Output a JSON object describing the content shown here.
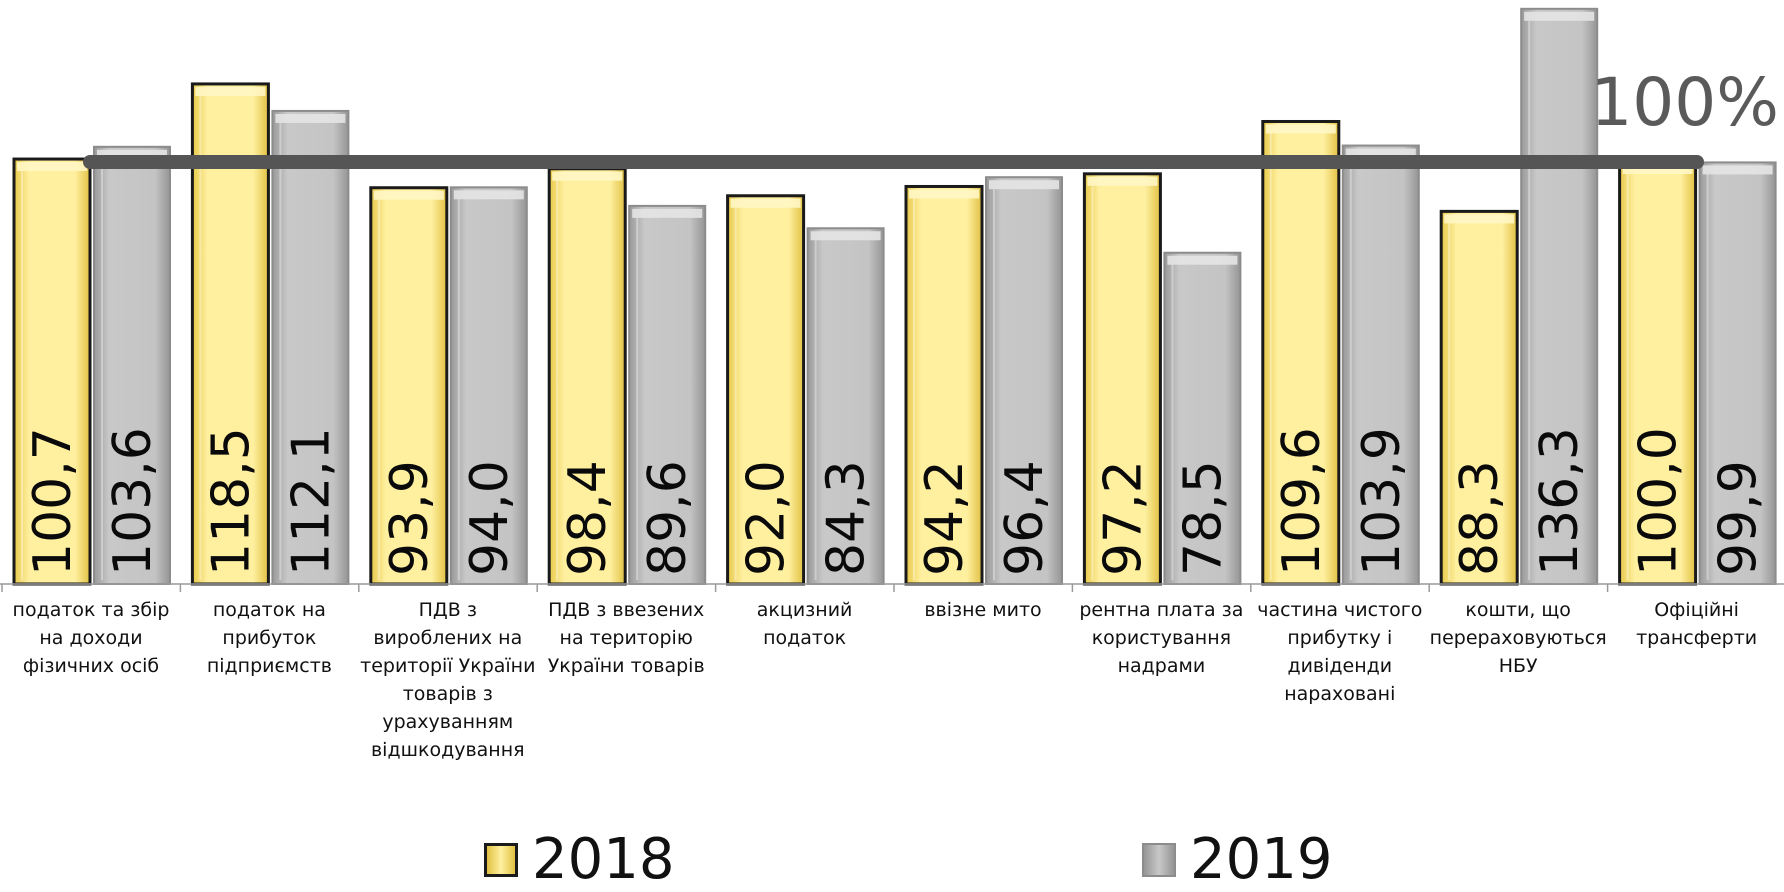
{
  "chart_data": {
    "type": "bar",
    "categories": [
      "податок та збір на доходи фізичних осіб",
      "податок на прибуток підприємств",
      "ПДВ з вироблених на території України товарів з урахуванням відшкодування",
      "ПДВ з ввезених на територію України товарів",
      "акцизний податок",
      "ввізне мито",
      "рентна плата за користування надрами",
      "частина чистого прибутку і дивіденди нараховані",
      "кошти, що перераховуються НБУ",
      "Офіційні трансферти"
    ],
    "series": [
      {
        "name": "2018",
        "values": [
          100.7,
          118.5,
          93.9,
          98.4,
          92.0,
          94.2,
          97.2,
          109.6,
          88.3,
          100.0
        ],
        "labels": [
          "100,7",
          "118,5",
          "93,9",
          "98,4",
          "92,0",
          "94,2",
          "97,2",
          "109,6",
          "88,3",
          "100,0"
        ],
        "color": "#F5DE6B"
      },
      {
        "name": "2019",
        "values": [
          103.6,
          112.1,
          94.0,
          89.6,
          84.3,
          96.4,
          78.5,
          103.9,
          136.3,
          99.9
        ],
        "labels": [
          "103,6",
          "112,1",
          "94,0",
          "89,6",
          "84,3",
          "96,4",
          "78,5",
          "103,9",
          "136,3",
          "99,9"
        ],
        "color": "#B5B5B5"
      }
    ],
    "reference_line": {
      "value": 100,
      "label": "100%",
      "color": "#555555"
    },
    "grid": false,
    "legend_position": "bottom"
  }
}
